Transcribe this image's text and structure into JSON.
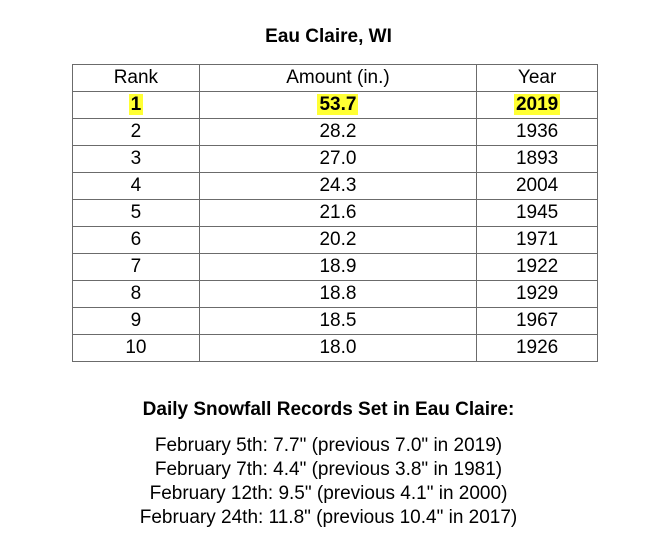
{
  "title": "Eau Claire, WI",
  "table": {
    "headers": [
      "Rank",
      "Amount (in.)",
      "Year"
    ],
    "rows": [
      [
        "1",
        "53.7",
        "2019"
      ],
      [
        "2",
        "28.2",
        "1936"
      ],
      [
        "3",
        "27.0",
        "1893"
      ],
      [
        "4",
        "24.3",
        "2004"
      ],
      [
        "5",
        "21.6",
        "1945"
      ],
      [
        "6",
        "20.2",
        "1971"
      ],
      [
        "7",
        "18.9",
        "1922"
      ],
      [
        "8",
        "18.8",
        "1929"
      ],
      [
        "9",
        "18.5",
        "1967"
      ],
      [
        "10",
        "18.0",
        "1926"
      ]
    ],
    "highlight_color": "#ffff33"
  },
  "daily": {
    "title": "Daily Snowfall Records Set in Eau Claire:",
    "items": [
      "February 5th: 7.7\" (previous 7.0\" in 2019)",
      "February 7th: 4.4\" (previous 3.8\" in 1981)",
      "February 12th: 9.5\" (previous 4.1\" in 2000)",
      "February 24th: 11.8\" (previous 10.4\" in 2017)"
    ]
  }
}
